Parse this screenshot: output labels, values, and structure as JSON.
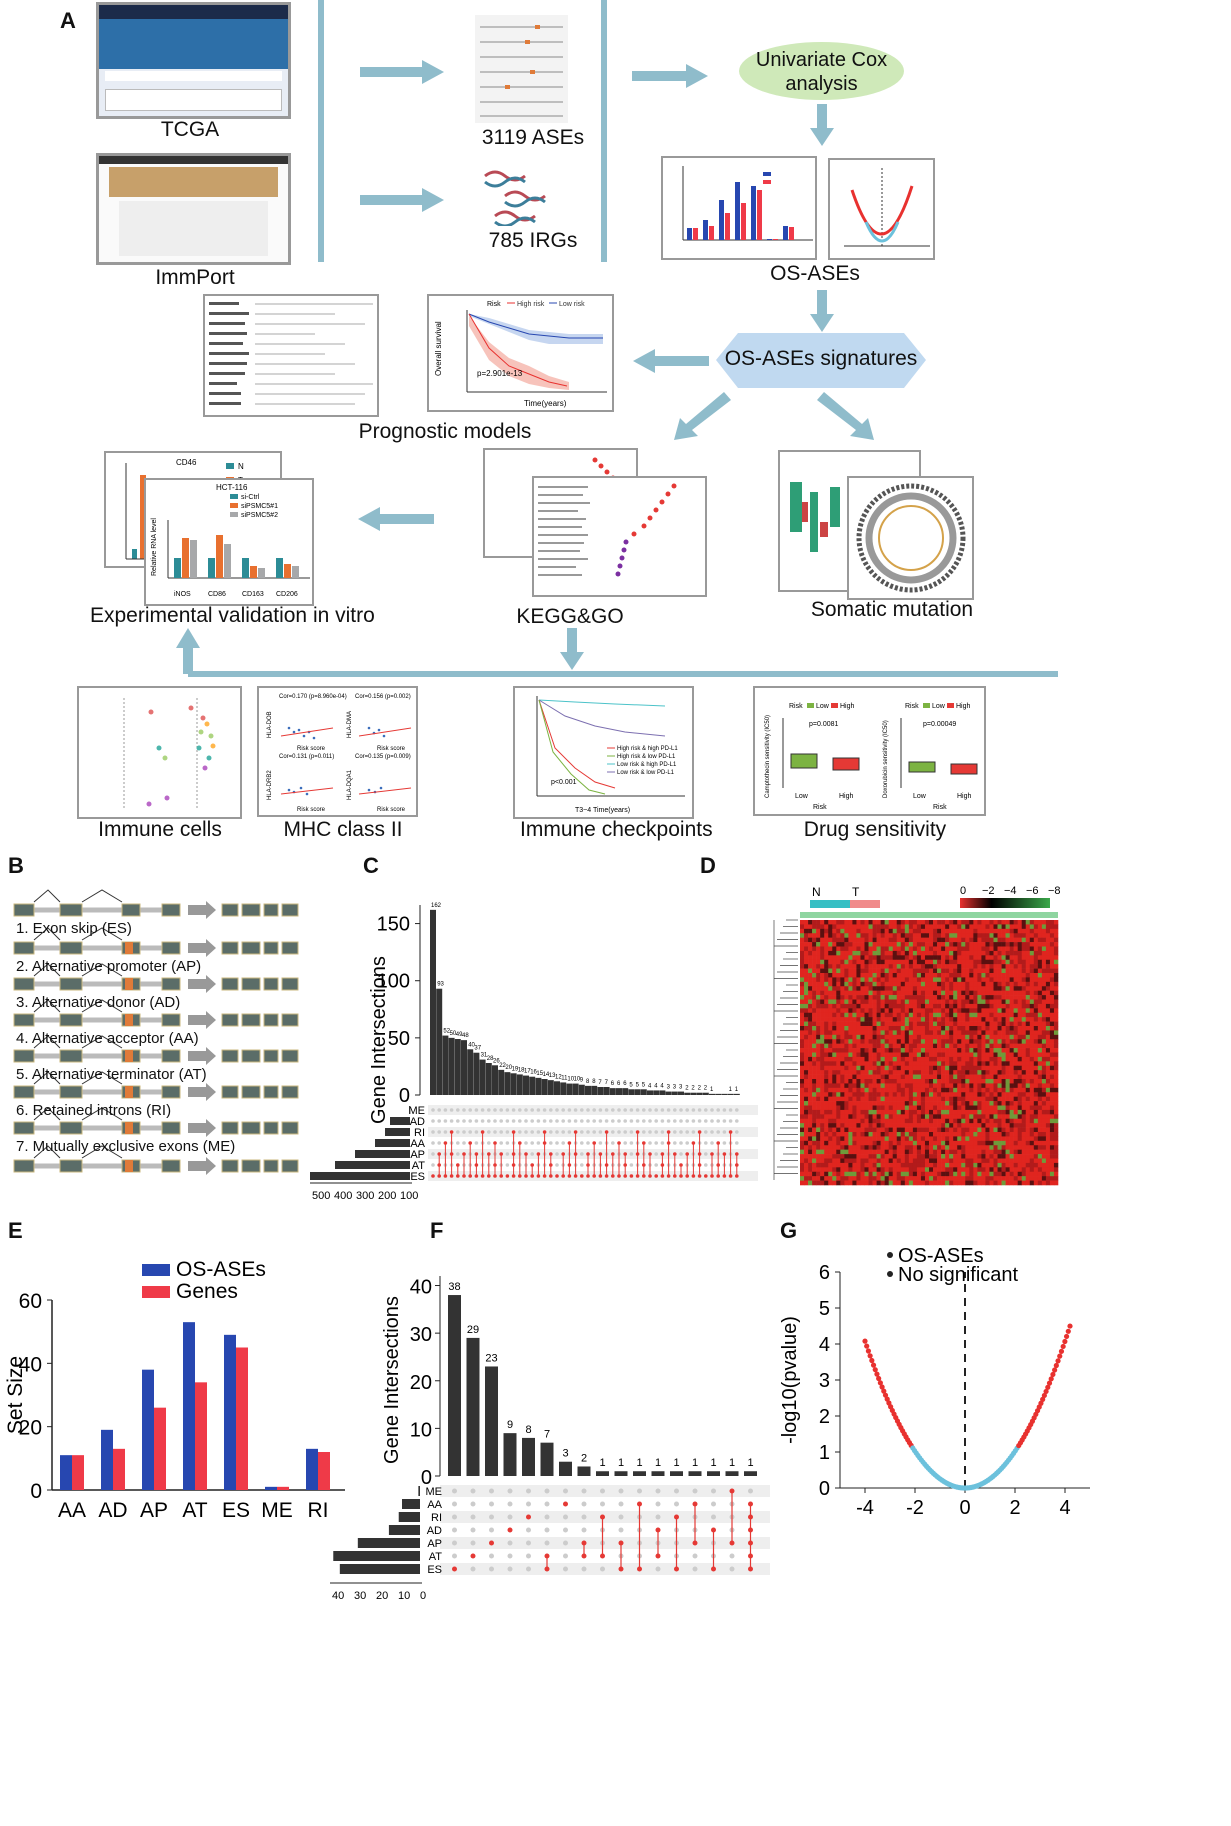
{
  "panel_a": {
    "letter": "A",
    "tcga_label": "TCGA",
    "immport_label": "ImmPort",
    "ases_label": "3119 ASEs",
    "irgs_label": "785 IRGs",
    "cox_label_1": "Univariate Cox",
    "cox_label_2": "analysis",
    "osases_label": "OS-ASEs",
    "signature_label": "OS-ASEs signatures",
    "prognostic_label": "Prognostic models",
    "experimental_label": "Experimental validation in vitro",
    "kegg_label": "KEGG&GO",
    "somatic_label": "Somatic mutation",
    "immune_label": "Immune cells",
    "mhc_label": "MHC class II",
    "checkpoint_label": "Immune checkpoints",
    "drug_label": "Drug sensitivity",
    "km_pvalue": "p=2.901e-13",
    "km_legend": [
      "Risk",
      "High risk",
      "Low risk"
    ],
    "km_xlabel": "Time(years)",
    "km_ylabel": "Overall survival",
    "ic_pvalue": "p<0.001",
    "ic_xlabel": "T3~4 Time(years)",
    "ic_legend": [
      "High risk & high PD-L1",
      "High risk & low PD-L1",
      "Low risk & high PD-L1",
      "Low risk & low PD-L1"
    ],
    "drug_p1": "p=0.0081",
    "drug_p2": "p=0.00049",
    "drug_y1": "Camptothecin sensitivity (IC50)",
    "drug_y2": "Doxorubicin sensitivity (IC50)",
    "drug_xlabel": "Risk",
    "drug_groups": [
      "Low",
      "High"
    ],
    "exp_cell": "HCT-116",
    "exp_cd": "CD46",
    "exp_legend": [
      "si-Ctrl",
      "siPSMC5#1",
      "siPSMC5#2"
    ],
    "exp_nt": [
      "N",
      "T"
    ],
    "exp_ylabel": "Relative RNA level",
    "exp_xcats": [
      "iNOS",
      "CD86",
      "CD163",
      "CD206"
    ],
    "mhc_corrs": [
      "Cor=0.170 (p=8.960e-04)",
      "Cor=0.156 (p=0.002)",
      "Cor=0.131 (p=0.011)",
      "Cor=0.135 (p=0.009)"
    ],
    "mhc_xlabel": "Risk score",
    "mhc_genes": [
      "HLA-DOB",
      "HLA-DMA",
      "HLA-DRB2",
      "HLA-DQA1"
    ]
  },
  "panel_b": {
    "letter": "B",
    "events": [
      "1. Exon skip (ES)",
      "2. Alternative promoter (AP)",
      "3. Alternative donor (AD)",
      "4. Alternative acceptor (AA)",
      "5. Alternative terminator (AT)",
      "6. Retained introns (RI)",
      "7. Mutually exclusive exons (ME)"
    ]
  },
  "panel_c": {
    "letter": "C",
    "ylabel": "Gene Intersections",
    "yticks": [
      "0",
      "50",
      "100",
      "150"
    ],
    "set_names": [
      "ME",
      "AD",
      "RI",
      "AA",
      "AP",
      "AT",
      "ES"
    ],
    "set_xticks": [
      "500",
      "400",
      "300",
      "200",
      "100"
    ]
  },
  "panel_d": {
    "letter": "D",
    "groups": [
      "N",
      "T"
    ],
    "scale": [
      "0",
      "−2",
      "−4",
      "−6",
      "−8"
    ]
  },
  "panel_e": {
    "letter": "E",
    "colors": {
      "os_ases": "#2747b0",
      "genes": "#ef3a48"
    }
  },
  "panel_f": {
    "letter": "F",
    "ylabel": "Gene Intersections",
    "yticks": [
      "0",
      "10",
      "20",
      "30",
      "40"
    ],
    "set_names": [
      "ME",
      "AA",
      "RI",
      "AD",
      "AP",
      "AT",
      "ES"
    ],
    "set_xticks": [
      "40",
      "30",
      "20",
      "10",
      "0"
    ],
    "bar_values": [
      38,
      29,
      23,
      9,
      8,
      7,
      3,
      2,
      1,
      1,
      1,
      1,
      1,
      1,
      1,
      1,
      1
    ],
    "bar_labels": [
      "38",
      "29",
      "23",
      "9",
      "8",
      "7",
      "3",
      "2",
      "1",
      "1",
      "1",
      "1",
      "1",
      "1",
      "1",
      "1",
      "1"
    ],
    "set_sizes": [
      1,
      11,
      13,
      19,
      38,
      53,
      49
    ]
  },
  "panel_g": {
    "letter": "G",
    "legend": [
      "OS-ASEs",
      "No significant"
    ],
    "ylabel": "-log10(pvalue)",
    "xticks": [
      "-4",
      "-2",
      "0",
      "2",
      "4"
    ],
    "yticks": [
      "0",
      "1",
      "2",
      "3",
      "4",
      "5",
      "6"
    ],
    "colors": {
      "sig": "#e8312f",
      "nonsig": "#6cc1dc"
    }
  },
  "chart_data": [
    {
      "type": "bar",
      "panel": "E",
      "categories": [
        "AA",
        "AD",
        "AP",
        "AT",
        "ES",
        "ME",
        "RI"
      ],
      "series": [
        {
          "name": "OS-ASEs",
          "values": [
            11,
            19,
            38,
            53,
            49,
            1,
            13
          ]
        },
        {
          "name": "Genes",
          "values": [
            11,
            13,
            26,
            34,
            45,
            1,
            12
          ]
        }
      ],
      "ylabel": "Set Size",
      "yticks": [
        "0",
        "20",
        "40",
        "60"
      ],
      "ylim": [
        0,
        60
      ],
      "legend": "top-left"
    },
    {
      "type": "bar",
      "panel": "F",
      "values": [
        38,
        29,
        23,
        9,
        8,
        7,
        3,
        2,
        1,
        1,
        1,
        1,
        1,
        1,
        1,
        1,
        1
      ],
      "ylabel": "Gene Intersections",
      "ylim": [
        0,
        40
      ]
    },
    {
      "type": "scatter",
      "panel": "G",
      "ylabel": "-log10(pvalue)",
      "xlim": [
        -5,
        5
      ],
      "ylim": [
        0,
        6
      ],
      "series": [
        {
          "name": "OS-ASEs"
        },
        {
          "name": "No significant"
        }
      ]
    }
  ]
}
